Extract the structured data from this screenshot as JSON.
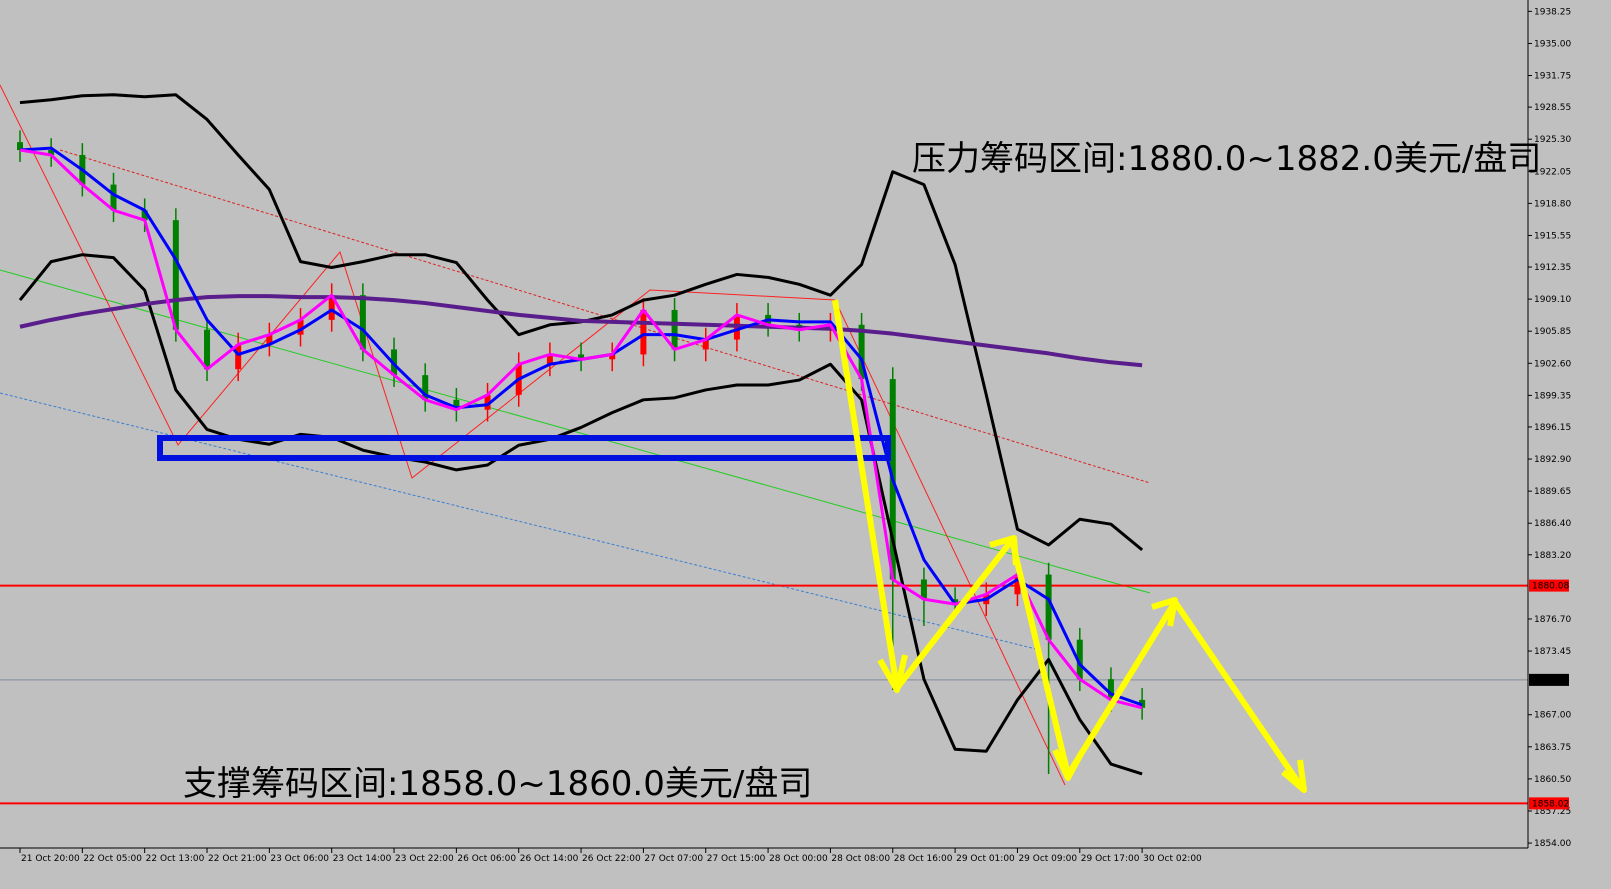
{
  "chart_data": {
    "type": "candlestick",
    "categories": [
      "21 Oct 20:00",
      null,
      "22 Oct 05:00",
      null,
      "22 Oct 13:00",
      null,
      "22 Oct 21:00",
      null,
      "23 Oct 06:00",
      null,
      "23 Oct 14:00",
      null,
      "23 Oct 22:00",
      null,
      "26 Oct 06:00",
      null,
      "26 Oct 14:00",
      null,
      "26 Oct 22:00",
      null,
      "27 Oct 07:00",
      null,
      "27 Oct 15:00",
      null,
      "28 Oct 00:00",
      null,
      "28 Oct 08:00",
      null,
      "28 Oct 16:00",
      null,
      "29 Oct 01:00",
      null,
      "29 Oct 09:00",
      null,
      "29 Oct 17:00",
      null,
      "30 Oct 02:00"
    ],
    "candles": {
      "open": [
        1925.0,
        1924.2,
        1923.7,
        1920.7,
        1918.1,
        1917.1,
        1906.0,
        1902.0,
        1904.5,
        1905.5,
        1907.0,
        1909.5,
        1904.0,
        1901.4,
        1898.9,
        1897.9,
        1899.4,
        1902.5,
        1903.5,
        1903.0,
        1903.5,
        1908.0,
        1904.0,
        1905.0,
        1907.5,
        1906.5,
        1906.0,
        1906.5,
        1901.0,
        1880.7,
        1878.7,
        1878.2,
        1879.2,
        1881.2,
        1874.6,
        1870.6,
        1868.5
      ],
      "high": [
        1926.2,
        1925.4,
        1924.9,
        1921.9,
        1919.3,
        1918.3,
        1907.2,
        1905.7,
        1906.7,
        1908.2,
        1910.7,
        1910.7,
        1905.2,
        1902.6,
        1900.1,
        1900.6,
        1903.7,
        1904.7,
        1904.7,
        1904.7,
        1909.2,
        1909.2,
        1906.2,
        1908.7,
        1908.7,
        1907.7,
        1907.7,
        1907.7,
        1902.2,
        1881.9,
        1879.9,
        1880.4,
        1882.4,
        1882.4,
        1875.8,
        1871.8,
        1869.7
      ],
      "low": [
        1923.0,
        1922.5,
        1919.5,
        1916.9,
        1915.9,
        1904.8,
        1900.8,
        1900.8,
        1903.3,
        1904.3,
        1905.8,
        1902.8,
        1900.2,
        1897.7,
        1896.7,
        1896.7,
        1898.2,
        1901.3,
        1901.8,
        1901.8,
        1902.3,
        1902.8,
        1902.8,
        1903.8,
        1905.3,
        1904.8,
        1904.8,
        1899.8,
        1869.5,
        1876.0,
        1877.0,
        1877.0,
        1878.0,
        1861.0,
        1869.4,
        1867.3,
        1866.5
      ],
      "close": [
        1924.2,
        1923.7,
        1920.7,
        1918.1,
        1917.1,
        1906.0,
        1902.0,
        1904.5,
        1905.5,
        1907.0,
        1909.5,
        1904.0,
        1901.4,
        1898.9,
        1897.9,
        1899.4,
        1902.5,
        1903.5,
        1903.0,
        1903.5,
        1908.0,
        1904.0,
        1905.0,
        1907.5,
        1906.5,
        1906.0,
        1906.5,
        1901.0,
        1880.7,
        1878.7,
        1878.2,
        1879.2,
        1881.2,
        1874.6,
        1870.6,
        1868.5,
        1867.7
      ],
      "up_color": "#ff0000",
      "down_color": "#008000"
    },
    "series": [
      {
        "color": "#000000",
        "values": [
          1929.0,
          1929.3,
          1929.7,
          1929.8,
          1929.6,
          1929.8,
          1927.3,
          1923.7,
          1920.2,
          1912.9,
          1912.3,
          1912.9,
          1913.6,
          1913.6,
          1912.8,
          1909.0,
          1905.5,
          1906.5,
          1906.8,
          1907.5,
          1909.0,
          1909.5,
          1910.6,
          1911.6,
          1911.3,
          1910.6,
          1909.5,
          1912.6,
          1922.0,
          1920.7,
          1912.6,
          1899.4,
          1885.8,
          1884.2,
          1886.8,
          1886.3,
          1883.7
        ]
      },
      {
        "color": "#000000",
        "values": [
          1909.0,
          1912.9,
          1913.6,
          1913.3,
          1910.0,
          1899.9,
          1895.9,
          1894.9,
          1894.4,
          1895.4,
          1895.1,
          1893.8,
          1893.1,
          1892.6,
          1891.8,
          1892.3,
          1894.3,
          1894.9,
          1896.1,
          1897.6,
          1898.9,
          1899.1,
          1899.9,
          1900.4,
          1900.4,
          1900.9,
          1902.5,
          1898.9,
          1884.7,
          1870.6,
          1863.5,
          1863.3,
          1868.5,
          1872.6,
          1866.5,
          1862.0,
          1861.0
        ]
      },
      {
        "color": "#5a1e8c",
        "values": [
          1906.3,
          1907.0,
          1907.6,
          1908.1,
          1908.6,
          1909.0,
          1909.3,
          1909.4,
          1909.4,
          1909.3,
          1909.3,
          1909.2,
          1909.0,
          1908.7,
          1908.3,
          1907.9,
          1907.5,
          1907.2,
          1906.9,
          1906.8,
          1906.7,
          1906.6,
          1906.5,
          1906.4,
          1906.3,
          1906.2,
          1906.1,
          1905.9,
          1905.6,
          1905.2,
          1904.8,
          1904.4,
          1904.0,
          1903.6,
          1903.1,
          1902.7,
          1902.4
        ]
      },
      {
        "color": "#0000ff",
        "values": [
          1924.2,
          1924.4,
          1922.2,
          1919.7,
          1918.1,
          1913.1,
          1907.0,
          1903.5,
          1904.5,
          1906.0,
          1908.0,
          1906.0,
          1902.5,
          1899.4,
          1898.1,
          1898.4,
          1901.0,
          1902.5,
          1903.0,
          1903.5,
          1905.5,
          1905.5,
          1905.0,
          1906.0,
          1907.0,
          1906.8,
          1906.8,
          1903.0,
          1890.8,
          1882.7,
          1878.2,
          1878.7,
          1880.7,
          1878.7,
          1872.1,
          1869.1,
          1868.0
        ]
      },
      {
        "color": "#ff00ff",
        "values": [
          1924.2,
          1923.7,
          1920.7,
          1918.1,
          1917.1,
          1906.0,
          1902.0,
          1904.5,
          1905.5,
          1907.0,
          1909.5,
          1904.0,
          1901.4,
          1898.9,
          1897.9,
          1899.4,
          1902.5,
          1903.5,
          1903.0,
          1903.5,
          1908.0,
          1904.0,
          1905.0,
          1907.5,
          1906.5,
          1906.0,
          1906.5,
          1901.0,
          1880.7,
          1878.7,
          1878.2,
          1879.2,
          1881.2,
          1874.6,
          1870.6,
          1868.5,
          1867.7
        ]
      }
    ],
    "hlines": [
      {
        "value": 1880.08,
        "label": "1880.08",
        "color": "#ff0000"
      },
      {
        "value": 1870.53,
        "label": "1870.53",
        "color": "#7f8c9a"
      },
      {
        "value": 1858.02,
        "label": "1858.02",
        "color": "#ff0000"
      }
    ],
    "ylim": [
      1853.5,
      1939.4
    ],
    "yticks": [
      {
        "value": 1938.25,
        "label": "1938.25"
      },
      {
        "value": 1935.0,
        "label": "1935.00"
      },
      {
        "value": 1931.75,
        "label": "1931.75"
      },
      {
        "value": 1928.55,
        "label": "1928.55"
      },
      {
        "value": 1925.3,
        "label": "1925.30"
      },
      {
        "value": 1922.05,
        "label": "1922.05"
      },
      {
        "value": 1918.8,
        "label": "1918.80"
      },
      {
        "value": 1915.55,
        "label": "1915.55"
      },
      {
        "value": 1912.35,
        "label": "1912.35"
      },
      {
        "value": 1909.1,
        "label": "1909.10"
      },
      {
        "value": 1905.85,
        "label": "1905.85"
      },
      {
        "value": 1902.6,
        "label": "1902.60"
      },
      {
        "value": 1899.35,
        "label": "1899.35"
      },
      {
        "value": 1896.15,
        "label": "1896.15"
      },
      {
        "value": 1892.9,
        "label": "1892.90"
      },
      {
        "value": 1889.65,
        "label": "1889.65"
      },
      {
        "value": 1886.4,
        "label": "1886.40"
      },
      {
        "value": 1883.2,
        "label": "1883.20"
      },
      {
        "value": 1876.7,
        "label": "1876.70"
      },
      {
        "value": 1873.45,
        "label": "1873.45"
      },
      {
        "value": 1867.0,
        "label": "1867.00"
      },
      {
        "value": 1863.75,
        "label": "1863.75"
      },
      {
        "value": 1860.5,
        "label": "1860.50"
      },
      {
        "value": 1857.25,
        "label": "1857.25"
      },
      {
        "value": 1854.0,
        "label": "1854.00"
      }
    ],
    "annotations": [
      "压力筹码区间:1880.0~1882.0美元/盘司",
      "支撑筹码区间:1858.0~1860.0美元/盘司"
    ]
  }
}
